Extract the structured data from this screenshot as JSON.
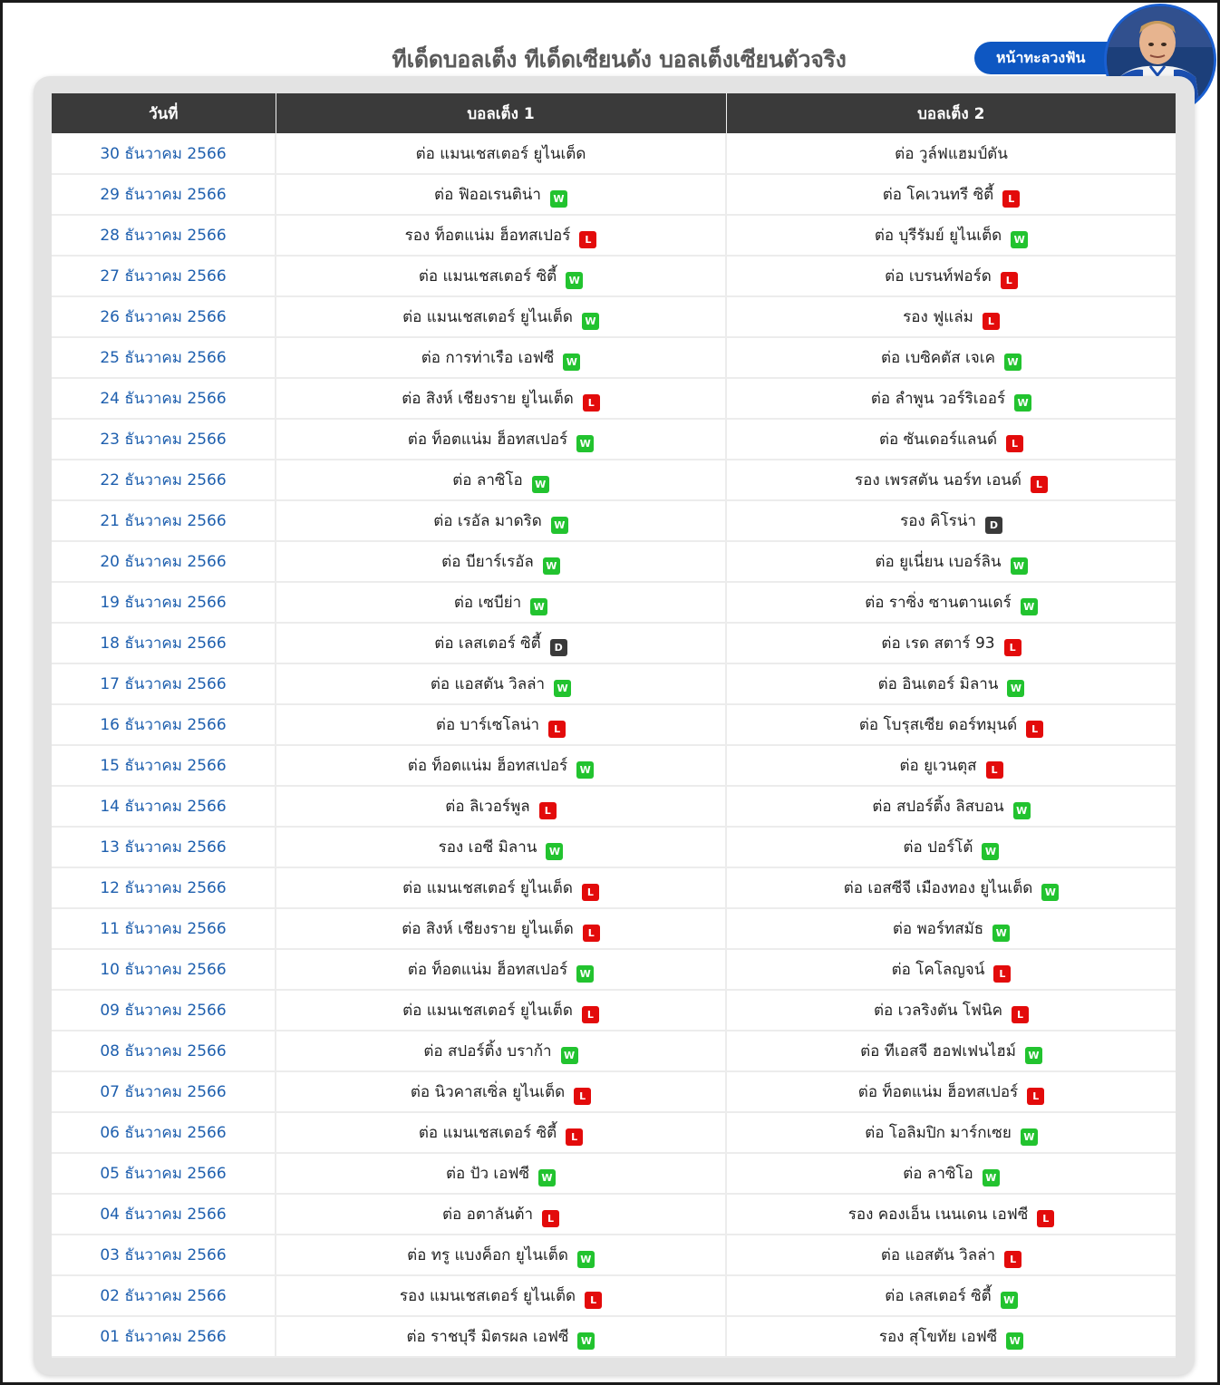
{
  "page": {
    "title": "ทีเด็ดบอลเต็ง ทีเด็ดเซียนดัง บอลเต็งเซียนตัวจริง",
    "profile_button": "หน้าทะลวงฟัน",
    "avatar_icon": "player-photo"
  },
  "colors": {
    "win": "#22c32f",
    "loss": "#e30b0b",
    "draw": "#3a3a3a",
    "header_bg": "#3a3a3a",
    "date_text": "#1e5fae",
    "button_bg": "#0e57c2"
  },
  "table": {
    "headers": [
      "วันที่",
      "บอลเต็ง 1",
      "บอลเต็ง 2"
    ],
    "rows": [
      {
        "date": "30 ธันวาคม 2566",
        "pick1": "ต่อ แมนเชสเตอร์ ยูไนเต็ด",
        "result1": "",
        "pick2": "ต่อ วูล์ฟแฮมป์ตัน",
        "result2": ""
      },
      {
        "date": "29 ธันวาคม 2566",
        "pick1": "ต่อ ฟิออเรนติน่า",
        "result1": "W",
        "pick2": "ต่อ โคเวนทรี ซิตี้",
        "result2": "L"
      },
      {
        "date": "28 ธันวาคม 2566",
        "pick1": "รอง ท็อตแน่ม ฮ็อทสเปอร์",
        "result1": "L",
        "pick2": "ต่อ บุรีรัมย์ ยูไนเต็ด",
        "result2": "W"
      },
      {
        "date": "27 ธันวาคม 2566",
        "pick1": "ต่อ แมนเชสเตอร์ ซิตี้",
        "result1": "W",
        "pick2": "ต่อ เบรนท์ฟอร์ด",
        "result2": "L"
      },
      {
        "date": "26 ธันวาคม 2566",
        "pick1": "ต่อ แมนเชสเตอร์ ยูไนเต็ด",
        "result1": "W",
        "pick2": "รอง ฟูแล่ม",
        "result2": "L"
      },
      {
        "date": "25 ธันวาคม 2566",
        "pick1": "ต่อ การท่าเรือ เอฟซี",
        "result1": "W",
        "pick2": "ต่อ เบซิคตัส เจเค",
        "result2": "W"
      },
      {
        "date": "24 ธันวาคม 2566",
        "pick1": "ต่อ สิงห์ เชียงราย ยูไนเต็ด",
        "result1": "L",
        "pick2": "ต่อ ลำพูน วอร์ริเออร์",
        "result2": "W"
      },
      {
        "date": "23 ธันวาคม 2566",
        "pick1": "ต่อ ท็อตแน่ม ฮ็อทสเปอร์",
        "result1": "W",
        "pick2": "ต่อ ซันเดอร์แลนด์",
        "result2": "L"
      },
      {
        "date": "22 ธันวาคม 2566",
        "pick1": "ต่อ ลาซิโอ",
        "result1": "W",
        "pick2": "รอง เพรสตัน นอร์ท เอนด์",
        "result2": "L"
      },
      {
        "date": "21 ธันวาคม 2566",
        "pick1": "ต่อ เรอัล มาดริด",
        "result1": "W",
        "pick2": "รอง คิโรน่า",
        "result2": "D"
      },
      {
        "date": "20 ธันวาคม 2566",
        "pick1": "ต่อ บียาร์เรอัล",
        "result1": "W",
        "pick2": "ต่อ ยูเนี่ยน เบอร์ลิน",
        "result2": "W"
      },
      {
        "date": "19 ธันวาคม 2566",
        "pick1": "ต่อ เซบีย่า",
        "result1": "W",
        "pick2": "ต่อ ราซิ่ง ซานตานเดร์",
        "result2": "W"
      },
      {
        "date": "18 ธันวาคม 2566",
        "pick1": "ต่อ เลสเตอร์ ซิตี้",
        "result1": "D",
        "pick2": "ต่อ เรด สตาร์ 93",
        "result2": "L"
      },
      {
        "date": "17 ธันวาคม 2566",
        "pick1": "ต่อ แอสตัน วิลล่า",
        "result1": "W",
        "pick2": "ต่อ อินเตอร์ มิลาน",
        "result2": "W"
      },
      {
        "date": "16 ธันวาคม 2566",
        "pick1": "ต่อ บาร์เซโลน่า",
        "result1": "L",
        "pick2": "ต่อ โบรุสเซีย ดอร์ทมุนด์",
        "result2": "L"
      },
      {
        "date": "15 ธันวาคม 2566",
        "pick1": "ต่อ ท็อตแน่ม ฮ็อทสเปอร์",
        "result1": "W",
        "pick2": "ต่อ ยูเวนตุส",
        "result2": "L"
      },
      {
        "date": "14 ธันวาคม 2566",
        "pick1": "ต่อ ลิเวอร์พูล",
        "result1": "L",
        "pick2": "ต่อ สปอร์ติ้ง ลิสบอน",
        "result2": "W"
      },
      {
        "date": "13 ธันวาคม 2566",
        "pick1": "รอง เอซี มิลาน",
        "result1": "W",
        "pick2": "ต่อ ปอร์โต้",
        "result2": "W"
      },
      {
        "date": "12 ธันวาคม 2566",
        "pick1": "ต่อ แมนเชสเตอร์ ยูไนเต็ด",
        "result1": "L",
        "pick2": "ต่อ เอสซีจี เมืองทอง ยูไนเต็ด",
        "result2": "W"
      },
      {
        "date": "11 ธันวาคม 2566",
        "pick1": "ต่อ สิงห์ เชียงราย ยูไนเต็ด",
        "result1": "L",
        "pick2": "ต่อ พอร์ทสมัธ",
        "result2": "W"
      },
      {
        "date": "10 ธันวาคม 2566",
        "pick1": "ต่อ ท็อตแน่ม ฮ็อทสเปอร์",
        "result1": "W",
        "pick2": "ต่อ โคโลญจน์",
        "result2": "L"
      },
      {
        "date": "09 ธันวาคม 2566",
        "pick1": "ต่อ แมนเชสเตอร์ ยูไนเต็ด",
        "result1": "L",
        "pick2": "ต่อ เวลริงตัน โฟนิค",
        "result2": "L"
      },
      {
        "date": "08 ธันวาคม 2566",
        "pick1": "ต่อ สปอร์ติ้ง บราก้า",
        "result1": "W",
        "pick2": "ต่อ ทีเอสจี ฮอฟเฟนไฮม์",
        "result2": "W"
      },
      {
        "date": "07 ธันวาคม 2566",
        "pick1": "ต่อ นิวคาสเซิ่ล ยูไนเต็ด",
        "result1": "L",
        "pick2": "ต่อ ท็อตแน่ม ฮ็อทสเปอร์",
        "result2": "L"
      },
      {
        "date": "06 ธันวาคม 2566",
        "pick1": "ต่อ แมนเชสเตอร์ ซิตี้",
        "result1": "L",
        "pick2": "ต่อ โอลิมปิก มาร์กเซย",
        "result2": "W"
      },
      {
        "date": "05 ธันวาคม 2566",
        "pick1": "ต่อ ปัว เอฟซี",
        "result1": "W",
        "pick2": "ต่อ ลาซิโอ",
        "result2": "W"
      },
      {
        "date": "04 ธันวาคม 2566",
        "pick1": "ต่อ อตาลันต้า",
        "result1": "L",
        "pick2": "รอง คองเอ็น เนนเดน เอฟซี",
        "result2": "L"
      },
      {
        "date": "03 ธันวาคม 2566",
        "pick1": "ต่อ ทรู แบงค็อก ยูไนเต็ด",
        "result1": "W",
        "pick2": "ต่อ แอสตัน วิลล่า",
        "result2": "L"
      },
      {
        "date": "02 ธันวาคม 2566",
        "pick1": "รอง แมนเชสเตอร์ ยูไนเต็ด",
        "result1": "L",
        "pick2": "ต่อ เลสเตอร์ ซิตี้",
        "result2": "W"
      },
      {
        "date": "01 ธันวาคม 2566",
        "pick1": "ต่อ ราชบุรี มิตรผล เอฟซี",
        "result1": "W",
        "pick2": "รอง สุโขทัย เอฟซี",
        "result2": "W"
      }
    ]
  }
}
